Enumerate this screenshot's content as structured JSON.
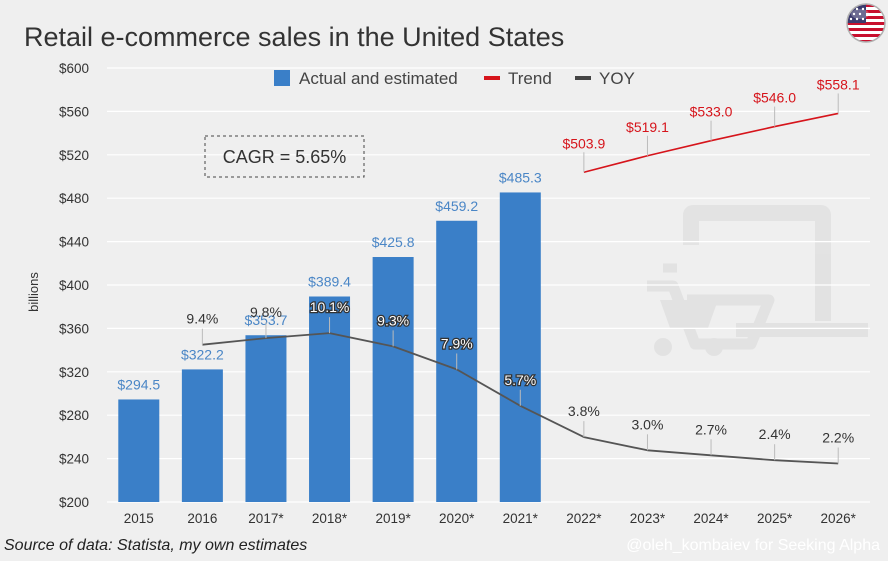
{
  "chart_data": {
    "type": "bar",
    "title": "Retail e-commerce sales in the United States",
    "ylabel": "billions",
    "xlabel": "",
    "ylim": [
      200,
      600
    ],
    "yticks": [
      200,
      240,
      280,
      320,
      360,
      400,
      440,
      480,
      520,
      560,
      600
    ],
    "ytick_labels": [
      "$200",
      "$240",
      "$280",
      "$320",
      "$360",
      "$400",
      "$440",
      "$480",
      "$520",
      "$560",
      "$600"
    ],
    "grid": true,
    "legend_position": "top",
    "categories": [
      "2015",
      "2016",
      "2017*",
      "2018*",
      "2019*",
      "2020*",
      "2021*",
      "2022*",
      "2023*",
      "2024*",
      "2025*",
      "2026*"
    ],
    "series": [
      {
        "name": "Actual and estimated",
        "type": "bar",
        "color": "#3a7fc8",
        "values": [
          294.5,
          322.2,
          353.7,
          389.4,
          425.8,
          459.2,
          485.3,
          null,
          null,
          null,
          null,
          null
        ],
        "labels": [
          "$294.5",
          "$322.2",
          "$353.7",
          "$389.4",
          "$425.8",
          "$459.2",
          "$485.3",
          "",
          "",
          "",
          "",
          ""
        ]
      },
      {
        "name": "Trend",
        "type": "line",
        "color": "#d6141b",
        "values": [
          null,
          null,
          null,
          null,
          null,
          null,
          null,
          503.9,
          519.1,
          533.0,
          546.0,
          558.1
        ],
        "labels": [
          "",
          "",
          "",
          "",
          "",
          "",
          "",
          "$503.9",
          "$519.1",
          "$533.0",
          "$546.0",
          "$558.1"
        ]
      },
      {
        "name": "YOY",
        "type": "line",
        "color": "#555555",
        "unit": "percent",
        "values": [
          null,
          9.4,
          9.8,
          10.1,
          9.3,
          7.9,
          5.7,
          3.8,
          3.0,
          2.7,
          2.4,
          2.2
        ],
        "labels": [
          "",
          "9.4%",
          "9.8%",
          "10.1%",
          "9.3%",
          "7.9%",
          "5.7%",
          "3.8%",
          "3.0%",
          "2.7%",
          "2.4%",
          "2.2%"
        ]
      }
    ],
    "annotations": [
      {
        "text": "CAGR = 5.65%"
      }
    ]
  },
  "footer": {
    "source": "Source of data: Statista, my own estimates",
    "credit": "@oleh_kombaiev for Seeking Alpha"
  },
  "colors": {
    "background": "#efefef",
    "grid": "#ffffff",
    "bar": "#3a7fc8",
    "bar_label": "#4a86c6",
    "trend": "#d6141b",
    "yoy": "#555555"
  },
  "icons": [
    "us-flag-icon",
    "laptop-cart-icon"
  ]
}
